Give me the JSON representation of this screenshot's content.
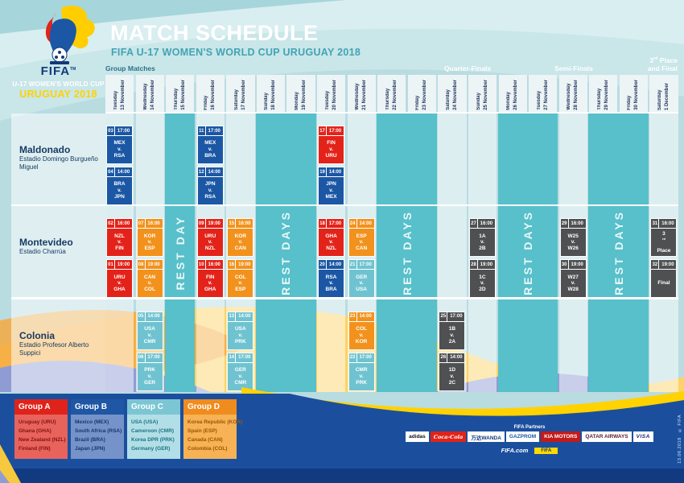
{
  "branding": {
    "fifa_wordmark": "FIFA",
    "tm": "TM",
    "event_line1": "U-17 WOMEN'S WORLD CUP",
    "event_line2": "URUGUAY 2018"
  },
  "header": {
    "title": "MATCH SCHEDULE",
    "subtitle": "FIFA U-17 WOMEN'S WORLD CUP URUGUAY 2018"
  },
  "phases": {
    "group": "Group Matches",
    "quarter": "Quarter-Finals",
    "semi": "Semi-Finals",
    "final_line1": "3rd Place",
    "final_line2": "and Final"
  },
  "columns": [
    {
      "day": "Tuesday",
      "date": "13 November"
    },
    {
      "day": "Wednesday",
      "date": "14 November"
    },
    {
      "day": "Thursday",
      "date": "15 November"
    },
    {
      "day": "Friday",
      "date": "16 November"
    },
    {
      "day": "Saturday",
      "date": "17 November"
    },
    {
      "day": "Sunday",
      "date": "18 November"
    },
    {
      "day": "Monday",
      "date": "19 November"
    },
    {
      "day": "Tuesday",
      "date": "20 November"
    },
    {
      "day": "Wednesday",
      "date": "21 November"
    },
    {
      "day": "Thursday",
      "date": "22 November"
    },
    {
      "day": "Friday",
      "date": "23 November"
    },
    {
      "day": "Saturday",
      "date": "24 November"
    },
    {
      "day": "Sunday",
      "date": "25 November"
    },
    {
      "day": "Monday",
      "date": "26 November"
    },
    {
      "day": "Tuesday",
      "date": "27 November"
    },
    {
      "day": "Wednesday",
      "date": "28 November"
    },
    {
      "day": "Thursday",
      "date": "29 November"
    },
    {
      "day": "Friday",
      "date": "30 November"
    },
    {
      "day": "Saturday",
      "date": "1 December"
    }
  ],
  "venues": [
    {
      "name": "Maldonado",
      "stadium": "Estadio Domingo Burgueño Miguel"
    },
    {
      "name": "Montevideo",
      "stadium": "Estadio Charrúa"
    },
    {
      "name": "Colonia",
      "stadium": "Estadio Profesor Alberto Suppici"
    }
  ],
  "rest_bands": [
    {
      "from": 3,
      "to": 3,
      "label": "REST DAY"
    },
    {
      "from": 6,
      "to": 7,
      "label": "REST DAYS"
    },
    {
      "from": 10,
      "to": 11,
      "label": "REST DAYS"
    },
    {
      "from": 14,
      "to": 15,
      "label": "REST DAYS"
    },
    {
      "from": 17,
      "to": 18,
      "label": "REST DAYS"
    }
  ],
  "matches": [
    {
      "num": "03",
      "time": "17:00",
      "lines": [
        "MEX",
        "v.",
        "RSA"
      ],
      "venue": 0,
      "col": 1,
      "slot": 0,
      "color": "B"
    },
    {
      "num": "04",
      "time": "14:00",
      "lines": [
        "BRA",
        "v.",
        "JPN"
      ],
      "venue": 0,
      "col": 1,
      "slot": 1,
      "color": "B"
    },
    {
      "num": "11",
      "time": "17:00",
      "lines": [
        "MEX",
        "v.",
        "BRA"
      ],
      "venue": 0,
      "col": 4,
      "slot": 0,
      "color": "B"
    },
    {
      "num": "12",
      "time": "14:00",
      "lines": [
        "JPN",
        "v.",
        "RSA"
      ],
      "venue": 0,
      "col": 4,
      "slot": 1,
      "color": "B"
    },
    {
      "num": "17",
      "time": "17:00",
      "lines": [
        "FIN",
        "v.",
        "URU"
      ],
      "venue": 0,
      "col": 8,
      "slot": 0,
      "color": "A"
    },
    {
      "num": "19",
      "time": "14:00",
      "lines": [
        "JPN",
        "v.",
        "MEX"
      ],
      "venue": 0,
      "col": 8,
      "slot": 1,
      "color": "B"
    },
    {
      "num": "02",
      "time": "16:00",
      "lines": [
        "NZL",
        "v.",
        "FIN"
      ],
      "venue": 1,
      "col": 1,
      "slot": 0,
      "color": "A"
    },
    {
      "num": "01",
      "time": "19:00",
      "lines": [
        "URU",
        "v.",
        "GHA"
      ],
      "venue": 1,
      "col": 1,
      "slot": 1,
      "color": "A"
    },
    {
      "num": "07",
      "time": "16:00",
      "lines": [
        "KOR",
        "v.",
        "ESP"
      ],
      "venue": 1,
      "col": 2,
      "slot": 0,
      "color": "D"
    },
    {
      "num": "08",
      "time": "19:00",
      "lines": [
        "CAN",
        "v.",
        "COL"
      ],
      "venue": 1,
      "col": 2,
      "slot": 1,
      "color": "D"
    },
    {
      "num": "09",
      "time": "19:00",
      "lines": [
        "URU",
        "v.",
        "NZL"
      ],
      "venue": 1,
      "col": 4,
      "slot": 0,
      "color": "A"
    },
    {
      "num": "10",
      "time": "16:00",
      "lines": [
        "FIN",
        "v.",
        "GHA"
      ],
      "venue": 1,
      "col": 4,
      "slot": 1,
      "color": "A"
    },
    {
      "num": "15",
      "time": "16:00",
      "lines": [
        "KOR",
        "v.",
        "CAN"
      ],
      "venue": 1,
      "col": 5,
      "slot": 0,
      "color": "D"
    },
    {
      "num": "16",
      "time": "19:00",
      "lines": [
        "COL",
        "v.",
        "ESP"
      ],
      "venue": 1,
      "col": 5,
      "slot": 1,
      "color": "D"
    },
    {
      "num": "18",
      "time": "17:00",
      "lines": [
        "GHA",
        "v.",
        "NZL"
      ],
      "venue": 1,
      "col": 8,
      "slot": 0,
      "color": "A"
    },
    {
      "num": "20",
      "time": "14:00",
      "lines": [
        "RSA",
        "v.",
        "BRA"
      ],
      "venue": 1,
      "col": 8,
      "slot": 1,
      "color": "B"
    },
    {
      "num": "24",
      "time": "14:00",
      "lines": [
        "ESP",
        "v.",
        "CAN"
      ],
      "venue": 1,
      "col": 9,
      "slot": 0,
      "color": "D"
    },
    {
      "num": "21",
      "time": "17:00",
      "lines": [
        "GER",
        "v.",
        "USA"
      ],
      "venue": 1,
      "col": 9,
      "slot": 1,
      "color": "C"
    },
    {
      "num": "27",
      "time": "16:00",
      "lines": [
        "1A",
        "v.",
        "2B"
      ],
      "venue": 1,
      "col": 13,
      "slot": 0,
      "color": "K"
    },
    {
      "num": "28",
      "time": "19:00",
      "lines": [
        "1C",
        "v.",
        "2D"
      ],
      "venue": 1,
      "col": 13,
      "slot": 1,
      "color": "K"
    },
    {
      "num": "29",
      "time": "16:00",
      "lines": [
        "W25",
        "v.",
        "W26"
      ],
      "venue": 1,
      "col": 16,
      "slot": 0,
      "color": "K"
    },
    {
      "num": "30",
      "time": "19:00",
      "lines": [
        "W27",
        "v.",
        "W28"
      ],
      "venue": 1,
      "col": 16,
      "slot": 1,
      "color": "K"
    },
    {
      "num": "31",
      "time": "16:00",
      "lines": [
        "3rd",
        "Place"
      ],
      "venue": 1,
      "col": 19,
      "slot": 0,
      "color": "K"
    },
    {
      "num": "32",
      "time": "19:00",
      "lines": [
        "Final"
      ],
      "venue": 1,
      "col": 19,
      "slot": 1,
      "color": "K"
    },
    {
      "num": "05",
      "time": "14:00",
      "lines": [
        "USA",
        "v.",
        "CMR"
      ],
      "venue": 2,
      "col": 2,
      "slot": 0,
      "color": "C"
    },
    {
      "num": "06",
      "time": "17:00",
      "lines": [
        "PRK",
        "v.",
        "GER"
      ],
      "venue": 2,
      "col": 2,
      "slot": 1,
      "color": "C"
    },
    {
      "num": "13",
      "time": "14:00",
      "lines": [
        "USA",
        "v.",
        "PRK"
      ],
      "venue": 2,
      "col": 5,
      "slot": 0,
      "color": "C"
    },
    {
      "num": "14",
      "time": "17:00",
      "lines": [
        "GER",
        "v.",
        "CMR"
      ],
      "venue": 2,
      "col": 5,
      "slot": 1,
      "color": "C"
    },
    {
      "num": "23",
      "time": "14:00",
      "lines": [
        "COL",
        "v.",
        "KOR"
      ],
      "venue": 2,
      "col": 9,
      "slot": 0,
      "color": "D"
    },
    {
      "num": "22",
      "time": "17:00",
      "lines": [
        "CMR",
        "v.",
        "PRK"
      ],
      "venue": 2,
      "col": 9,
      "slot": 1,
      "color": "C"
    },
    {
      "num": "25",
      "time": "17:00",
      "lines": [
        "1B",
        "v.",
        "2A"
      ],
      "venue": 2,
      "col": 12,
      "slot": 0,
      "color": "K"
    },
    {
      "num": "26",
      "time": "14:00",
      "lines": [
        "1D",
        "v.",
        "2C"
      ],
      "venue": 2,
      "col": 12,
      "slot": 1,
      "color": "K"
    }
  ],
  "match_colors": {
    "A": "#e3231a",
    "B": "#1b57a4",
    "C": "#6fc3d0",
    "D": "#f2921d",
    "K": "#4f5052"
  },
  "groups": [
    {
      "name": "Group A",
      "header": "#e0231a",
      "body": "#e8635c",
      "text": "#821310",
      "teams": [
        "Uruguay (URU)",
        "Ghana (GHA)",
        "New Zealand (NZL)",
        "Finland (FIN)"
      ]
    },
    {
      "name": "Group B",
      "header": "#1f57a4",
      "body": "#7693c9",
      "text": "#11386f",
      "teams": [
        "Mexico (MEX)",
        "South Africa (RSA)",
        "Brazil (BRA)",
        "Japan (JPN)"
      ]
    },
    {
      "name": "Group C",
      "header": "#7cc6d4",
      "body": "#b2dfe7",
      "text": "#1d7483",
      "teams": [
        "USA (USA)",
        "Cameroon (CMR)",
        "Korea DPR (PRK)",
        "Germany (GER)"
      ]
    },
    {
      "name": "Group D",
      "header": "#f08c1e",
      "body": "#f6b254",
      "text": "#9c5404",
      "teams": [
        "Korea Republic (KOR)",
        "Spain (ESP)",
        "Canada (CAN)",
        "Colombia (COL)"
      ]
    }
  ],
  "partners": {
    "label": "FIFA Partners",
    "logos": [
      {
        "name": "adidas",
        "bg": "#ffffff",
        "fg": "#111111",
        "style": ""
      },
      {
        "name": "Coca-Cola",
        "bg": "#e0231a",
        "fg": "#ffffff",
        "style": "script"
      },
      {
        "name": "万达WANDA",
        "bg": "#ffffff",
        "fg": "#123a7a",
        "style": ""
      },
      {
        "name": "GAZPROM",
        "bg": "#ffffff",
        "fg": "#1b57a4",
        "style": ""
      },
      {
        "name": "KIA MOTORS",
        "bg": "#c21a1a",
        "fg": "#ffffff",
        "style": ""
      },
      {
        "name": "QATAR AIRWAYS",
        "bg": "#ffffff",
        "fg": "#5c1a33",
        "style": ""
      },
      {
        "name": "VISA",
        "bg": "#ffffff",
        "fg": "#1a1f71",
        "style": "italic"
      }
    ],
    "fifacom": "FIFA.com",
    "badge": "FIFA"
  },
  "footnote": "13.06.2018   © FIFA"
}
